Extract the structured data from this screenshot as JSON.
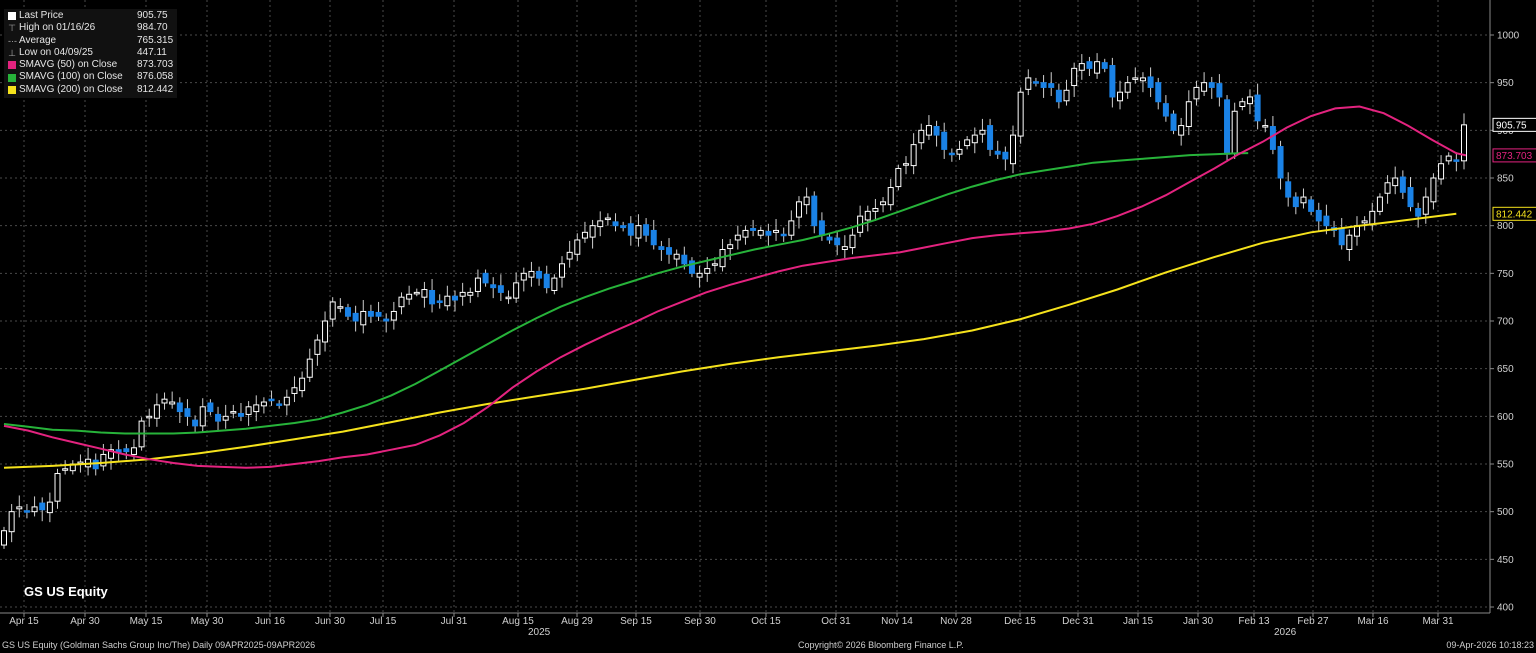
{
  "legend": {
    "last_price": {
      "label": "Last Price",
      "value": "905.75"
    },
    "high": {
      "label": "High on 01/16/26",
      "value": "984.70"
    },
    "average": {
      "label": "Average",
      "value": "765.315"
    },
    "low": {
      "label": "Low on 04/09/25",
      "value": "447.11"
    },
    "sma50": {
      "label": "SMAVG (50)  on Close",
      "value": "873.703",
      "color": "#e3237f"
    },
    "sma100": {
      "label": "SMAVG (100)  on Close",
      "value": "876.058",
      "color": "#27b33a"
    },
    "sma200": {
      "label": "SMAVG (200)  on Close",
      "value": "812.442",
      "color": "#f5e21c"
    }
  },
  "ticker": "GS US Equity",
  "footer": {
    "left": "GS US Equity (Goldman Sachs Group Inc/The) Daily 09APR2025-09APR2026",
    "center": "Copyright© 2026 Bloomberg Finance L.P.",
    "right": "09-Apr-2026 10:18:23"
  },
  "years": {
    "y2025": "2025",
    "y2026": "2026"
  },
  "colors": {
    "up": "#ffffff",
    "down": "#1a82e6",
    "grid": "#4a4a4a",
    "background": "#000000"
  },
  "chart_data": {
    "type": "candlestick",
    "title": "",
    "ylim": [
      400,
      1000
    ],
    "y_ticks": [
      400,
      450,
      500,
      550,
      600,
      650,
      700,
      750,
      800,
      850,
      900,
      950,
      1000
    ],
    "x_ticks": [
      "Apr 15",
      "Apr 30",
      "May 15",
      "May 30",
      "Jun 16",
      "Jun 30",
      "Jul 15",
      "Jul 31",
      "Aug 15",
      "Aug 29",
      "Sep 15",
      "Sep 30",
      "Oct 15",
      "Oct 31",
      "Nov 14",
      "Nov 28",
      "Dec 15",
      "Dec 31",
      "Jan 15",
      "Jan 30",
      "Feb 13",
      "Feb 27",
      "Mar 16",
      "Mar 31"
    ],
    "grid": true,
    "price_labels": [
      {
        "value": 905.75,
        "text": "905.75",
        "color": "#ffffff"
      },
      {
        "value": 873.703,
        "text": "873.703",
        "color": "#e3237f"
      },
      {
        "value": 812.442,
        "text": "812.442",
        "color": "#f5e21c"
      }
    ],
    "close": [
      480,
      500,
      505,
      500,
      505,
      502,
      510,
      540,
      545,
      550,
      552,
      555,
      545,
      560,
      565,
      562,
      563,
      567,
      595,
      600,
      612,
      618,
      615,
      605,
      600,
      590,
      610,
      605,
      595,
      600,
      605,
      600,
      610,
      612,
      615,
      617,
      612,
      620,
      630,
      640,
      660,
      680,
      700,
      720,
      715,
      705,
      700,
      710,
      705,
      705,
      700,
      710,
      725,
      728,
      730,
      733,
      718,
      720,
      726,
      722,
      730,
      730,
      745,
      740,
      735,
      730,
      725,
      740,
      750,
      752,
      745,
      735,
      745,
      760,
      772,
      785,
      793,
      800,
      805,
      808,
      800,
      798,
      790,
      800,
      790,
      780,
      775,
      770,
      770,
      760,
      750,
      750,
      755,
      760,
      775,
      780,
      790,
      795,
      795,
      795,
      790,
      795,
      790,
      805,
      825,
      830,
      800,
      790,
      785,
      780,
      778,
      790,
      810,
      815,
      818,
      825,
      840,
      860,
      865,
      885,
      900,
      905,
      895,
      880,
      875,
      880,
      890,
      895,
      900,
      880,
      875,
      870,
      895,
      940,
      955,
      950,
      945,
      945,
      930,
      942,
      965,
      970,
      965,
      972,
      965,
      935,
      940,
      950,
      955,
      955,
      945,
      930,
      915,
      900,
      905,
      930,
      945,
      950,
      945,
      935,
      875,
      920,
      930,
      935,
      910,
      905,
      880,
      850,
      830,
      820,
      830,
      815,
      805,
      800,
      795,
      780,
      790,
      800,
      805,
      815,
      830,
      845,
      850,
      835,
      820,
      810,
      830,
      850,
      865,
      873,
      868,
      905.75
    ],
    "ma_50": {
      "name": "SMAVG (50)  on Close",
      "points": [
        [
          0,
          590
        ],
        [
          1,
          585
        ],
        [
          2,
          578
        ],
        [
          3,
          572
        ],
        [
          4,
          566
        ],
        [
          5,
          560
        ],
        [
          6,
          555
        ],
        [
          7,
          551
        ],
        [
          8,
          548
        ],
        [
          9,
          547
        ],
        [
          10,
          546
        ],
        [
          11,
          547
        ],
        [
          12,
          550
        ],
        [
          13,
          553
        ],
        [
          14,
          557
        ],
        [
          15,
          560
        ],
        [
          16,
          565
        ],
        [
          17,
          570
        ],
        [
          18,
          580
        ],
        [
          19,
          593
        ],
        [
          20,
          610
        ],
        [
          21,
          630
        ],
        [
          22,
          647
        ],
        [
          23,
          662
        ],
        [
          24,
          675
        ],
        [
          25,
          687
        ],
        [
          26,
          698
        ],
        [
          27,
          710
        ],
        [
          28,
          720
        ],
        [
          29,
          730
        ],
        [
          30,
          738
        ],
        [
          31,
          745
        ],
        [
          32,
          752
        ],
        [
          33,
          758
        ],
        [
          34,
          762
        ],
        [
          35,
          766
        ],
        [
          36,
          769
        ],
        [
          37,
          772
        ],
        [
          38,
          777
        ],
        [
          39,
          782
        ],
        [
          40,
          787
        ],
        [
          41,
          790
        ],
        [
          42,
          792
        ],
        [
          43,
          794
        ],
        [
          44,
          797
        ],
        [
          45,
          802
        ],
        [
          46,
          810
        ],
        [
          47,
          820
        ],
        [
          48,
          832
        ],
        [
          49,
          846
        ],
        [
          50,
          860
        ],
        [
          51,
          875
        ],
        [
          52,
          888
        ],
        [
          53,
          903
        ],
        [
          54,
          915
        ],
        [
          55,
          923
        ],
        [
          56,
          925
        ],
        [
          57,
          918
        ],
        [
          58,
          905
        ],
        [
          59,
          890
        ],
        [
          60,
          876
        ],
        [
          60.4,
          873.7
        ]
      ]
    },
    "ma_100": {
      "name": "SMAVG (100)  on Close",
      "points": [
        [
          0,
          592
        ],
        [
          1,
          589
        ],
        [
          2,
          586
        ],
        [
          3,
          585
        ],
        [
          4,
          583
        ],
        [
          5,
          582
        ],
        [
          6,
          582
        ],
        [
          7,
          582
        ],
        [
          8,
          583
        ],
        [
          9,
          585
        ],
        [
          10,
          587
        ],
        [
          11,
          590
        ],
        [
          12,
          593
        ],
        [
          13,
          597
        ],
        [
          14,
          604
        ],
        [
          15,
          612
        ],
        [
          16,
          622
        ],
        [
          17,
          634
        ],
        [
          18,
          648
        ],
        [
          19,
          662
        ],
        [
          20,
          676
        ],
        [
          21,
          690
        ],
        [
          22,
          703
        ],
        [
          23,
          715
        ],
        [
          24,
          725
        ],
        [
          25,
          734
        ],
        [
          26,
          742
        ],
        [
          27,
          750
        ],
        [
          28,
          757
        ],
        [
          29,
          763
        ],
        [
          30,
          769
        ],
        [
          31,
          775
        ],
        [
          32,
          780
        ],
        [
          33,
          785
        ],
        [
          34,
          791
        ],
        [
          35,
          798
        ],
        [
          36,
          806
        ],
        [
          37,
          815
        ],
        [
          38,
          824
        ],
        [
          39,
          833
        ],
        [
          40,
          841
        ],
        [
          41,
          848
        ],
        [
          42,
          854
        ],
        [
          43,
          858
        ],
        [
          44,
          862
        ],
        [
          45,
          866
        ],
        [
          46,
          868
        ],
        [
          47,
          870
        ],
        [
          48,
          872
        ],
        [
          49,
          874
        ],
        [
          50,
          875
        ],
        [
          51,
          876
        ],
        [
          51.4,
          876.1
        ]
      ]
    },
    "ma_200": {
      "name": "SMAVG (200)  on Close",
      "points": [
        [
          0,
          546
        ],
        [
          2,
          548
        ],
        [
          4,
          551
        ],
        [
          6,
          555
        ],
        [
          8,
          561
        ],
        [
          10,
          568
        ],
        [
          12,
          576
        ],
        [
          14,
          584
        ],
        [
          16,
          594
        ],
        [
          18,
          604
        ],
        [
          20,
          613
        ],
        [
          22,
          621
        ],
        [
          24,
          629
        ],
        [
          26,
          638
        ],
        [
          28,
          647
        ],
        [
          30,
          655
        ],
        [
          32,
          662
        ],
        [
          34,
          668
        ],
        [
          36,
          674
        ],
        [
          38,
          681
        ],
        [
          40,
          690
        ],
        [
          42,
          702
        ],
        [
          44,
          717
        ],
        [
          46,
          733
        ],
        [
          48,
          751
        ],
        [
          50,
          767
        ],
        [
          52,
          782
        ],
        [
          54,
          793
        ],
        [
          56,
          800
        ],
        [
          58,
          806
        ],
        [
          60,
          812.4
        ]
      ]
    }
  }
}
